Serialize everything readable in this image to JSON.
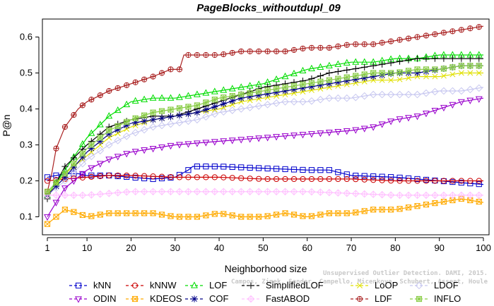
{
  "chart_data": {
    "type": "line",
    "title": "PageBlocks_withoutdupl_09",
    "xlabel": "Neighborhood size",
    "ylabel": "P@n",
    "xlim": [
      1,
      100
    ],
    "ylim": [
      0.05,
      0.65
    ],
    "x_ticks": [
      1,
      10,
      20,
      30,
      40,
      50,
      60,
      70,
      80,
      90,
      100
    ],
    "y_ticks": [
      0.1,
      0.2,
      0.3,
      0.4,
      0.5,
      0.6
    ],
    "x_tick_labels": [
      "1",
      "10",
      "20",
      "30",
      "40",
      "50",
      "60",
      "70",
      "80",
      "90",
      "100"
    ],
    "y_tick_labels": [
      "0.1",
      "0.2",
      "0.3",
      "0.4",
      "0.5",
      "0.6"
    ],
    "grid": false,
    "legend_placement": "bottom",
    "credit_lines": [
      "Unsupervised Outlier Detection. DAMI, 2015.",
      "Campos, Zimek, Sander, Campello, Micenkova, Schubert, Assent, Houle"
    ],
    "series": [
      {
        "name": "kNN",
        "color": "#0000cc",
        "marker": "square",
        "points": [
          [
            1,
            0.21
          ],
          [
            3,
            0.215
          ],
          [
            5,
            0.22
          ],
          [
            8,
            0.22
          ],
          [
            10,
            0.215
          ],
          [
            15,
            0.215
          ],
          [
            20,
            0.21
          ],
          [
            25,
            0.205
          ],
          [
            30,
            0.21
          ],
          [
            33,
            0.23
          ],
          [
            34,
            0.24
          ],
          [
            40,
            0.24
          ],
          [
            50,
            0.235
          ],
          [
            60,
            0.23
          ],
          [
            65,
            0.23
          ],
          [
            70,
            0.215
          ],
          [
            80,
            0.21
          ],
          [
            90,
            0.2
          ],
          [
            100,
            0.19
          ]
        ]
      },
      {
        "name": "kNNW",
        "color": "#cc0000",
        "marker": "circle",
        "points": [
          [
            1,
            0.2
          ],
          [
            5,
            0.205
          ],
          [
            10,
            0.21
          ],
          [
            15,
            0.215
          ],
          [
            20,
            0.215
          ],
          [
            30,
            0.21
          ],
          [
            40,
            0.21
          ],
          [
            50,
            0.205
          ],
          [
            60,
            0.205
          ],
          [
            70,
            0.205
          ],
          [
            80,
            0.2
          ],
          [
            90,
            0.2
          ],
          [
            100,
            0.2
          ]
        ]
      },
      {
        "name": "LOF",
        "color": "#00dd00",
        "marker": "triangle-up",
        "points": [
          [
            1,
            0.16
          ],
          [
            5,
            0.23
          ],
          [
            10,
            0.32
          ],
          [
            15,
            0.38
          ],
          [
            20,
            0.42
          ],
          [
            25,
            0.43
          ],
          [
            30,
            0.43
          ],
          [
            35,
            0.44
          ],
          [
            40,
            0.45
          ],
          [
            45,
            0.46
          ],
          [
            50,
            0.47
          ],
          [
            55,
            0.49
          ],
          [
            60,
            0.51
          ],
          [
            65,
            0.52
          ],
          [
            70,
            0.53
          ],
          [
            75,
            0.53
          ],
          [
            80,
            0.54
          ],
          [
            85,
            0.54
          ],
          [
            90,
            0.55
          ],
          [
            95,
            0.55
          ],
          [
            100,
            0.55
          ]
        ]
      },
      {
        "name": "SimplifiedLOF",
        "color": "#000000",
        "marker": "plus",
        "points": [
          [
            1,
            0.15
          ],
          [
            5,
            0.24
          ],
          [
            10,
            0.3
          ],
          [
            15,
            0.35
          ],
          [
            20,
            0.37
          ],
          [
            25,
            0.38
          ],
          [
            30,
            0.38
          ],
          [
            35,
            0.4
          ],
          [
            40,
            0.42
          ],
          [
            45,
            0.44
          ],
          [
            50,
            0.46
          ],
          [
            55,
            0.47
          ],
          [
            60,
            0.48
          ],
          [
            65,
            0.5
          ],
          [
            70,
            0.51
          ],
          [
            75,
            0.52
          ],
          [
            80,
            0.53
          ],
          [
            85,
            0.54
          ],
          [
            90,
            0.54
          ],
          [
            95,
            0.54
          ],
          [
            100,
            0.54
          ]
        ]
      },
      {
        "name": "LoOP",
        "color": "#e0e000",
        "marker": "x",
        "points": [
          [
            1,
            0.16
          ],
          [
            5,
            0.22
          ],
          [
            10,
            0.27
          ],
          [
            15,
            0.32
          ],
          [
            20,
            0.35
          ],
          [
            25,
            0.37
          ],
          [
            30,
            0.38
          ],
          [
            35,
            0.39
          ],
          [
            40,
            0.4
          ],
          [
            45,
            0.42
          ],
          [
            50,
            0.43
          ],
          [
            55,
            0.44
          ],
          [
            60,
            0.45
          ],
          [
            65,
            0.46
          ],
          [
            70,
            0.47
          ],
          [
            75,
            0.48
          ],
          [
            80,
            0.48
          ],
          [
            85,
            0.49
          ],
          [
            90,
            0.49
          ],
          [
            95,
            0.5
          ],
          [
            100,
            0.5
          ]
        ]
      },
      {
        "name": "LDOF",
        "color": "#c8c8f0",
        "marker": "diamond",
        "points": [
          [
            1,
            0.16
          ],
          [
            5,
            0.2
          ],
          [
            10,
            0.26
          ],
          [
            15,
            0.3
          ],
          [
            20,
            0.33
          ],
          [
            25,
            0.35
          ],
          [
            30,
            0.36
          ],
          [
            35,
            0.37
          ],
          [
            40,
            0.39
          ],
          [
            45,
            0.4
          ],
          [
            50,
            0.41
          ],
          [
            55,
            0.42
          ],
          [
            60,
            0.42
          ],
          [
            65,
            0.43
          ],
          [
            70,
            0.43
          ],
          [
            75,
            0.44
          ],
          [
            80,
            0.44
          ],
          [
            85,
            0.44
          ],
          [
            90,
            0.45
          ],
          [
            95,
            0.45
          ],
          [
            100,
            0.46
          ]
        ]
      },
      {
        "name": "ODIN",
        "color": "#9900cc",
        "marker": "triangle-down",
        "points": [
          [
            1,
            0.1
          ],
          [
            3,
            0.14
          ],
          [
            5,
            0.18
          ],
          [
            10,
            0.23
          ],
          [
            15,
            0.26
          ],
          [
            20,
            0.28
          ],
          [
            25,
            0.29
          ],
          [
            30,
            0.3
          ],
          [
            40,
            0.31
          ],
          [
            50,
            0.32
          ],
          [
            60,
            0.33
          ],
          [
            70,
            0.34
          ],
          [
            75,
            0.35
          ],
          [
            80,
            0.37
          ],
          [
            85,
            0.38
          ],
          [
            90,
            0.4
          ],
          [
            95,
            0.42
          ],
          [
            100,
            0.43
          ]
        ]
      },
      {
        "name": "KDEOS",
        "color": "#ffaa00",
        "marker": "boxed-x",
        "points": [
          [
            1,
            0.08
          ],
          [
            3,
            0.1
          ],
          [
            5,
            0.12
          ],
          [
            8,
            0.11
          ],
          [
            10,
            0.1
          ],
          [
            15,
            0.11
          ],
          [
            20,
            0.11
          ],
          [
            25,
            0.11
          ],
          [
            30,
            0.1
          ],
          [
            35,
            0.1
          ],
          [
            40,
            0.11
          ],
          [
            45,
            0.1
          ],
          [
            50,
            0.1
          ],
          [
            55,
            0.11
          ],
          [
            60,
            0.1
          ],
          [
            65,
            0.11
          ],
          [
            70,
            0.11
          ],
          [
            75,
            0.12
          ],
          [
            80,
            0.12
          ],
          [
            85,
            0.13
          ],
          [
            90,
            0.14
          ],
          [
            95,
            0.15
          ],
          [
            100,
            0.14
          ]
        ]
      },
      {
        "name": "COF",
        "color": "#000088",
        "marker": "asterisk",
        "points": [
          [
            1,
            0.16
          ],
          [
            5,
            0.21
          ],
          [
            10,
            0.28
          ],
          [
            15,
            0.33
          ],
          [
            20,
            0.36
          ],
          [
            25,
            0.37
          ],
          [
            30,
            0.38
          ],
          [
            35,
            0.39
          ],
          [
            40,
            0.41
          ],
          [
            45,
            0.43
          ],
          [
            50,
            0.44
          ],
          [
            55,
            0.45
          ],
          [
            60,
            0.46
          ],
          [
            65,
            0.47
          ],
          [
            70,
            0.48
          ],
          [
            75,
            0.49
          ],
          [
            80,
            0.5
          ],
          [
            85,
            0.5
          ],
          [
            90,
            0.51
          ],
          [
            95,
            0.52
          ],
          [
            100,
            0.52
          ]
        ]
      },
      {
        "name": "FastABOD",
        "color": "#ffc0ff",
        "marker": "diamond-plus",
        "points": [
          [
            1,
            0.16
          ],
          [
            5,
            0.16
          ],
          [
            10,
            0.16
          ],
          [
            20,
            0.17
          ],
          [
            30,
            0.17
          ],
          [
            40,
            0.17
          ],
          [
            50,
            0.17
          ],
          [
            60,
            0.17
          ],
          [
            70,
            0.165
          ],
          [
            80,
            0.16
          ],
          [
            90,
            0.16
          ],
          [
            100,
            0.16
          ]
        ]
      },
      {
        "name": "LDF",
        "color": "#aa2222",
        "marker": "circle-plus",
        "points": [
          [
            1,
            0.17
          ],
          [
            2,
            0.22
          ],
          [
            3,
            0.29
          ],
          [
            5,
            0.35
          ],
          [
            8,
            0.4
          ],
          [
            10,
            0.42
          ],
          [
            15,
            0.45
          ],
          [
            20,
            0.47
          ],
          [
            25,
            0.49
          ],
          [
            29,
            0.51
          ],
          [
            31,
            0.51
          ],
          [
            32,
            0.55
          ],
          [
            40,
            0.55
          ],
          [
            45,
            0.56
          ],
          [
            50,
            0.56
          ],
          [
            55,
            0.56
          ],
          [
            60,
            0.57
          ],
          [
            65,
            0.57
          ],
          [
            70,
            0.58
          ],
          [
            75,
            0.58
          ],
          [
            80,
            0.59
          ],
          [
            85,
            0.6
          ],
          [
            90,
            0.61
          ],
          [
            95,
            0.62
          ],
          [
            100,
            0.63
          ]
        ]
      },
      {
        "name": "INFLO",
        "color": "#88cc44",
        "marker": "boxed-star",
        "points": [
          [
            1,
            0.17
          ],
          [
            5,
            0.22
          ],
          [
            10,
            0.29
          ],
          [
            15,
            0.34
          ],
          [
            20,
            0.37
          ],
          [
            25,
            0.39
          ],
          [
            30,
            0.4
          ],
          [
            35,
            0.41
          ],
          [
            40,
            0.43
          ],
          [
            45,
            0.44
          ],
          [
            50,
            0.45
          ],
          [
            55,
            0.46
          ],
          [
            60,
            0.47
          ],
          [
            65,
            0.48
          ],
          [
            70,
            0.49
          ],
          [
            75,
            0.5
          ],
          [
            80,
            0.5
          ],
          [
            85,
            0.51
          ],
          [
            90,
            0.51
          ],
          [
            95,
            0.52
          ],
          [
            100,
            0.52
          ]
        ]
      }
    ],
    "legend_rows": [
      [
        "kNN",
        "kNNW",
        "LOF",
        "SimplifiedLOF",
        "LoOP",
        "LDOF"
      ],
      [
        "ODIN",
        "KDEOS",
        "COF",
        "FastABOD",
        "LDF",
        "INFLO"
      ]
    ]
  }
}
